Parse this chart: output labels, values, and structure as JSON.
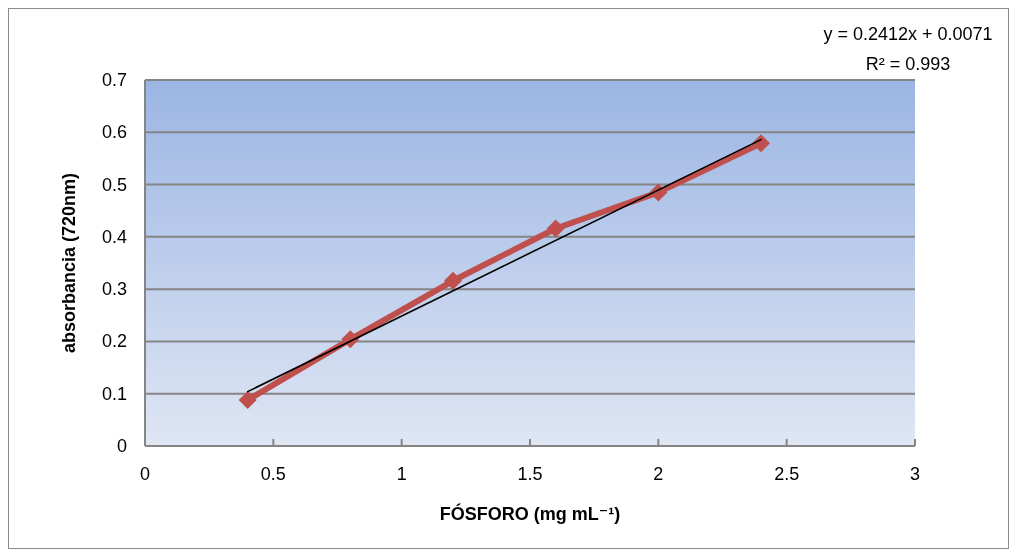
{
  "chart_data": {
    "type": "line",
    "xlabel": "FÓSFORO (mg mL⁻¹)",
    "ylabel": "absorbancia  (720nm)",
    "xlim": [
      0,
      3
    ],
    "xticks": [
      0,
      0.5,
      1,
      1.5,
      2,
      2.5,
      3
    ],
    "ylim": [
      0,
      0.7
    ],
    "yticks": [
      0,
      0.1,
      0.2,
      0.3,
      0.4,
      0.5,
      0.6,
      0.7
    ],
    "grid": "y",
    "marker": "diamond",
    "line_style": "solid",
    "x": [
      0.4,
      0.8,
      1.2,
      1.6,
      2.0,
      2.4
    ],
    "series": [
      {
        "color": "#c0504d",
        "values": [
          0.088,
          0.204,
          0.316,
          0.416,
          0.485,
          0.579
        ]
      },
      {
        "type": "line",
        "marker": "none",
        "color": "#000000",
        "x": [
          0.4,
          2.4
        ],
        "values": [
          0.104,
          0.586
        ]
      }
    ],
    "annotations": [
      "y = 0.2412x + 0.0071",
      "R² = 0.993"
    ]
  }
}
